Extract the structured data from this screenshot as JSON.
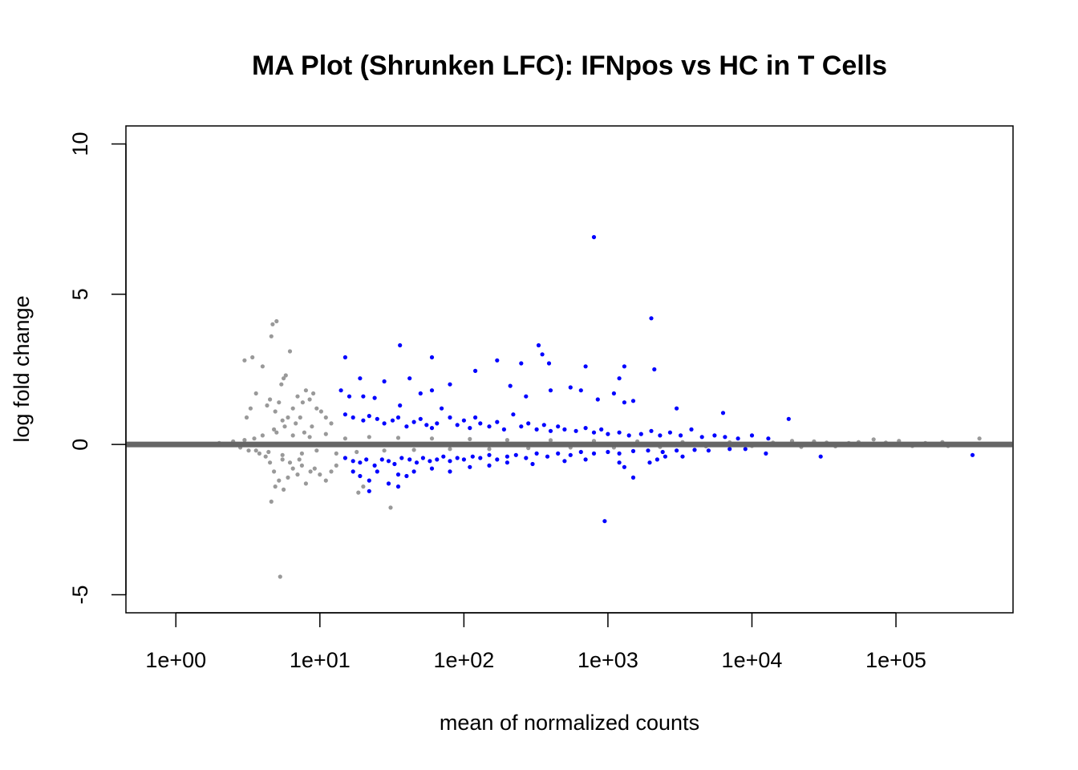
{
  "chart_data": {
    "type": "scatter",
    "title": "MA Plot (Shrunken LFC): IFNpos vs HC in T Cells",
    "xlabel": "mean of normalized counts",
    "ylabel": "log fold change",
    "x_scale": "log10",
    "xlim": [
      0.45,
      650000
    ],
    "ylim": [
      -5.6,
      10.6
    ],
    "x_ticks": [
      {
        "value": 1,
        "label": "1e+00"
      },
      {
        "value": 10,
        "label": "1e+01"
      },
      {
        "value": 100,
        "label": "1e+02"
      },
      {
        "value": 1000,
        "label": "1e+03"
      },
      {
        "value": 10000,
        "label": "1e+04"
      },
      {
        "value": 100000,
        "label": "1e+05"
      }
    ],
    "y_ticks": [
      {
        "value": -5,
        "label": "-5"
      },
      {
        "value": 0,
        "label": "0"
      },
      {
        "value": 5,
        "label": "5"
      },
      {
        "value": 10,
        "label": "10"
      }
    ],
    "reference_line": {
      "y": 0,
      "color": "#666666"
    },
    "grid": false,
    "legend": "none",
    "series": [
      {
        "color": "#999999",
        "points": [
          [
            3.0,
            2.8
          ],
          [
            3.4,
            2.9
          ],
          [
            3.6,
            1.7
          ],
          [
            3.3,
            1.2
          ],
          [
            3.1,
            0.9
          ],
          [
            4.0,
            2.6
          ],
          [
            4.6,
            3.6
          ],
          [
            4.7,
            4.0
          ],
          [
            5.0,
            4.1
          ],
          [
            5.6,
            2.2
          ],
          [
            5.4,
            2.0
          ],
          [
            5.8,
            2.3
          ],
          [
            6.2,
            3.1
          ],
          [
            5.2,
            1.4
          ],
          [
            4.5,
            1.5
          ],
          [
            4.3,
            1.3
          ],
          [
            4.9,
            1.1
          ],
          [
            5.5,
            0.8
          ],
          [
            6.5,
            1.2
          ],
          [
            7.0,
            1.6
          ],
          [
            7.6,
            1.4
          ],
          [
            8.0,
            1.8
          ],
          [
            8.5,
            1.5
          ],
          [
            9.0,
            1.7
          ],
          [
            7.3,
            0.9
          ],
          [
            6.8,
            0.7
          ],
          [
            8.8,
            0.6
          ],
          [
            9.5,
            1.2
          ],
          [
            10.2,
            1.1
          ],
          [
            11.0,
            0.9
          ],
          [
            12.0,
            0.7
          ],
          [
            5.7,
            0.6
          ],
          [
            6.0,
            0.9
          ],
          [
            4.8,
            0.5
          ],
          [
            7.8,
            0.4
          ],
          [
            4.5,
            -0.6
          ],
          [
            4.8,
            -0.9
          ],
          [
            5.2,
            -1.2
          ],
          [
            4.9,
            -1.4
          ],
          [
            4.6,
            -1.9
          ],
          [
            5.6,
            -1.5
          ],
          [
            6.0,
            -1.1
          ],
          [
            6.5,
            -0.8
          ],
          [
            7.0,
            -1.0
          ],
          [
            7.5,
            -0.7
          ],
          [
            8.0,
            -1.3
          ],
          [
            8.6,
            -0.9
          ],
          [
            9.2,
            -0.8
          ],
          [
            10.0,
            -1.0
          ],
          [
            11.0,
            -1.2
          ],
          [
            12.0,
            -0.9
          ],
          [
            13.0,
            -0.7
          ],
          [
            5.5,
            -0.5
          ],
          [
            6.2,
            -0.6
          ],
          [
            7.2,
            -0.5
          ],
          [
            5.3,
            -4.4
          ],
          [
            18.5,
            -1.6
          ],
          [
            20.0,
            -1.4
          ],
          [
            31.0,
            -2.1
          ],
          [
            3.8,
            -0.3
          ],
          [
            3.2,
            -0.2
          ],
          [
            4.2,
            -0.4
          ],
          [
            2.0,
            0.05
          ],
          [
            2.5,
            0.1
          ],
          [
            3.0,
            0.15
          ],
          [
            3.5,
            0.2
          ],
          [
            4.0,
            0.3
          ],
          [
            2.8,
            -0.1
          ],
          [
            3.6,
            -0.2
          ],
          [
            4.4,
            -0.25
          ],
          [
            5.0,
            0.4
          ],
          [
            5.5,
            -0.35
          ],
          [
            6.5,
            0.3
          ],
          [
            7.5,
            -0.3
          ],
          [
            8.5,
            0.25
          ],
          [
            9.5,
            -0.2
          ],
          [
            11.0,
            0.35
          ],
          [
            13.0,
            -0.3
          ],
          [
            15.0,
            0.2
          ],
          [
            18.0,
            -0.25
          ],
          [
            22.0,
            0.25
          ],
          [
            28.0,
            -0.2
          ],
          [
            35.0,
            0.22
          ],
          [
            45.0,
            -0.18
          ],
          [
            60.0,
            0.2
          ],
          [
            80.0,
            -0.15
          ],
          [
            110.0,
            0.18
          ],
          [
            150.0,
            -0.15
          ],
          [
            200.0,
            0.15
          ],
          [
            280.0,
            -0.12
          ],
          [
            400.0,
            0.14
          ],
          [
            550.0,
            -0.1
          ],
          [
            800.0,
            0.12
          ],
          [
            1100.0,
            -0.1
          ],
          [
            1600.0,
            0.1
          ],
          [
            2300.0,
            -0.08
          ],
          [
            3300.0,
            0.08
          ],
          [
            4800.0,
            -0.06
          ],
          [
            7000.0,
            0.07
          ],
          [
            10000.0,
            -0.05
          ],
          [
            14000.0,
            0.06
          ],
          [
            19000.0,
            0.12
          ],
          [
            22000.0,
            -0.08
          ],
          [
            27000.0,
            0.1
          ],
          [
            33000.0,
            0.06
          ],
          [
            38000.0,
            -0.06
          ],
          [
            47000.0,
            0.05
          ],
          [
            55000.0,
            0.08
          ],
          [
            70000.0,
            0.17
          ],
          [
            85000.0,
            0.06
          ],
          [
            105000.0,
            0.12
          ],
          [
            130000.0,
            -0.05
          ],
          [
            160000.0,
            0.05
          ],
          [
            210000.0,
            0.08
          ],
          [
            380000.0,
            0.2
          ],
          [
            230000.0,
            -0.05
          ]
        ]
      },
      {
        "color": "#0000ff",
        "points": [
          [
            800,
            6.9
          ],
          [
            2000,
            4.2
          ],
          [
            330,
            3.3
          ],
          [
            36,
            3.3
          ],
          [
            15,
            2.9
          ],
          [
            60,
            2.9
          ],
          [
            350,
            3.0
          ],
          [
            390,
            2.7
          ],
          [
            170,
            2.8
          ],
          [
            250,
            2.7
          ],
          [
            1300,
            2.6
          ],
          [
            700,
            2.6
          ],
          [
            2100,
            2.5
          ],
          [
            120,
            2.45
          ],
          [
            19,
            2.2
          ],
          [
            28,
            2.1
          ],
          [
            42,
            2.2
          ],
          [
            80,
            2.0
          ],
          [
            400,
            1.8
          ],
          [
            550,
            1.9
          ],
          [
            1200,
            2.2
          ],
          [
            1100,
            1.7
          ],
          [
            14,
            1.8
          ],
          [
            16,
            1.6
          ],
          [
            20,
            1.6
          ],
          [
            24,
            1.55
          ],
          [
            36,
            1.3
          ],
          [
            50,
            1.7
          ],
          [
            60,
            1.8
          ],
          [
            210,
            1.95
          ],
          [
            270,
            1.6
          ],
          [
            650,
            1.8
          ],
          [
            850,
            1.5
          ],
          [
            1300,
            1.4
          ],
          [
            1500,
            1.45
          ],
          [
            3000,
            1.2
          ],
          [
            6300,
            1.05
          ],
          [
            18000,
            0.85
          ],
          [
            15,
            1.0
          ],
          [
            17,
            0.9
          ],
          [
            20,
            0.8
          ],
          [
            22,
            0.95
          ],
          [
            25,
            0.85
          ],
          [
            28,
            0.7
          ],
          [
            32,
            0.8
          ],
          [
            35,
            0.9
          ],
          [
            40,
            0.6
          ],
          [
            45,
            0.75
          ],
          [
            50,
            0.85
          ],
          [
            55,
            0.65
          ],
          [
            60,
            0.55
          ],
          [
            65,
            0.7
          ],
          [
            70,
            1.2
          ],
          [
            80,
            0.9
          ],
          [
            90,
            0.65
          ],
          [
            100,
            0.8
          ],
          [
            110,
            0.55
          ],
          [
            120,
            0.9
          ],
          [
            130,
            0.7
          ],
          [
            150,
            0.6
          ],
          [
            170,
            0.75
          ],
          [
            190,
            0.5
          ],
          [
            220,
            1.0
          ],
          [
            250,
            0.6
          ],
          [
            280,
            0.7
          ],
          [
            320,
            0.5
          ],
          [
            360,
            0.65
          ],
          [
            400,
            0.45
          ],
          [
            450,
            0.6
          ],
          [
            500,
            0.5
          ],
          [
            600,
            0.45
          ],
          [
            700,
            0.55
          ],
          [
            800,
            0.4
          ],
          [
            900,
            0.5
          ],
          [
            1000,
            0.35
          ],
          [
            1200,
            0.4
          ],
          [
            1400,
            0.3
          ],
          [
            1700,
            0.35
          ],
          [
            2000,
            0.45
          ],
          [
            2300,
            0.3
          ],
          [
            2700,
            0.4
          ],
          [
            3200,
            0.3
          ],
          [
            3800,
            0.5
          ],
          [
            4500,
            0.25
          ],
          [
            5500,
            0.3
          ],
          [
            6500,
            0.25
          ],
          [
            8000,
            0.2
          ],
          [
            10000,
            0.3
          ],
          [
            13000,
            0.2
          ],
          [
            15,
            -0.45
          ],
          [
            17,
            -0.55
          ],
          [
            19,
            -0.6
          ],
          [
            21,
            -0.5
          ],
          [
            24,
            -0.7
          ],
          [
            27,
            -0.5
          ],
          [
            30,
            -0.55
          ],
          [
            33,
            -0.65
          ],
          [
            37,
            -0.45
          ],
          [
            42,
            -0.5
          ],
          [
            47,
            -0.6
          ],
          [
            52,
            -0.45
          ],
          [
            58,
            -0.55
          ],
          [
            65,
            -0.5
          ],
          [
            72,
            -0.4
          ],
          [
            80,
            -0.55
          ],
          [
            90,
            -0.45
          ],
          [
            100,
            -0.5
          ],
          [
            115,
            -0.4
          ],
          [
            130,
            -0.45
          ],
          [
            150,
            -0.35
          ],
          [
            170,
            -0.5
          ],
          [
            200,
            -0.4
          ],
          [
            230,
            -0.35
          ],
          [
            270,
            -0.45
          ],
          [
            320,
            -0.3
          ],
          [
            380,
            -0.4
          ],
          [
            450,
            -0.3
          ],
          [
            550,
            -0.35
          ],
          [
            650,
            -0.25
          ],
          [
            800,
            -0.3
          ],
          [
            1000,
            -0.25
          ],
          [
            1200,
            -0.3
          ],
          [
            1500,
            -0.22
          ],
          [
            1900,
            -0.2
          ],
          [
            2400,
            -0.25
          ],
          [
            3000,
            -0.2
          ],
          [
            4000,
            -0.18
          ],
          [
            5000,
            -0.2
          ],
          [
            7000,
            -0.15
          ],
          [
            9000,
            -0.15
          ],
          [
            17,
            -0.9
          ],
          [
            19,
            -1.05
          ],
          [
            22,
            -1.2
          ],
          [
            25,
            -0.9
          ],
          [
            30,
            -1.3
          ],
          [
            35,
            -1.0
          ],
          [
            40,
            -1.05
          ],
          [
            45,
            -0.9
          ],
          [
            60,
            -0.8
          ],
          [
            80,
            -0.9
          ],
          [
            110,
            -0.75
          ],
          [
            150,
            -0.7
          ],
          [
            200,
            -0.6
          ],
          [
            300,
            -0.65
          ],
          [
            500,
            -0.55
          ],
          [
            700,
            -0.5
          ],
          [
            22,
            -1.55
          ],
          [
            35,
            -1.4
          ],
          [
            1300,
            -0.75
          ],
          [
            1200,
            -0.6
          ],
          [
            1950,
            -0.6
          ],
          [
            2200,
            -0.5
          ],
          [
            2500,
            -0.4
          ],
          [
            1500,
            -1.1
          ],
          [
            3300,
            -0.4
          ],
          [
            950,
            -2.55
          ],
          [
            30000,
            -0.4
          ],
          [
            12500,
            -0.3
          ],
          [
            340000,
            -0.35
          ]
        ]
      }
    ]
  }
}
